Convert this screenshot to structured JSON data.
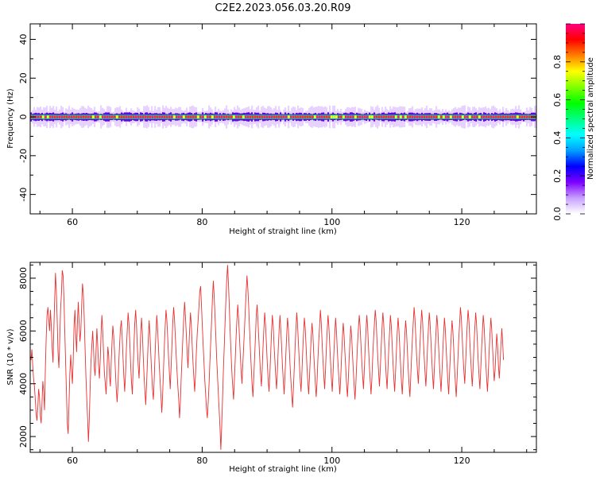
{
  "title": "C2E2.2023.056.03.20.R09",
  "chart_data": [
    {
      "type": "heatmap",
      "xlabel": "Height of straight line (km)",
      "ylabel": "Frequency (Hz)",
      "xlim": [
        53.5,
        131.5
      ],
      "ylim": [
        -50,
        48
      ],
      "xticks": [
        "60",
        "80",
        "100",
        "120"
      ],
      "yticks": [
        "40",
        "20",
        "0",
        "-20",
        "-40"
      ],
      "band_center_hz": 0,
      "band_halfwidth_hz": 1.5,
      "halo_halfwidth_hz": 4,
      "colorbar": {
        "label": "Normalized spectral amplitude",
        "range": [
          0,
          1
        ],
        "ticks": [
          "0.0",
          "0.2",
          "0.4",
          "0.6",
          "0.8"
        ],
        "colors": [
          "#ffffff",
          "#c8a0ff",
          "#7d00ff",
          "#0000ff",
          "#00a0ff",
          "#00ffff",
          "#00ff80",
          "#00ff00",
          "#80ff00",
          "#ffff00",
          "#ff8000",
          "#ff0000",
          "#ff0080"
        ]
      }
    },
    {
      "type": "line",
      "xlabel": "Height of straight line (km)",
      "ylabel": "SNR (10 * v/v)",
      "xlim": [
        53.5,
        131.5
      ],
      "ylim": [
        1400,
        8600
      ],
      "xticks": [
        "60",
        "80",
        "100",
        "120"
      ],
      "yticks": [
        "2000",
        "4000",
        "6000",
        "8000"
      ],
      "color": "#e83030",
      "x_start": 53.5,
      "x_step": 0.13,
      "y_values": [
        5100,
        4900,
        5300,
        4700,
        4200,
        3900,
        3400,
        2900,
        2600,
        3100,
        3800,
        3500,
        2800,
        2500,
        3300,
        4100,
        3700,
        3000,
        4600,
        5800,
        6600,
        6900,
        6400,
        6000,
        6800,
        6200,
        5400,
        4800,
        6000,
        7200,
        8200,
        7500,
        6400,
        5200,
        4600,
        5700,
        6800,
        7400,
        8300,
        8100,
        7200,
        6000,
        4800,
        3600,
        2500,
        2100,
        3200,
        4400,
        5100,
        4500,
        4000,
        4900,
        6200,
        6800,
        5900,
        5200,
        6400,
        7100,
        6300,
        5600,
        6000,
        7000,
        7800,
        7400,
        6600,
        5400,
        4300,
        3500,
        2700,
        1800,
        2600,
        3800,
        4800,
        5400,
        6000,
        5400,
        4600,
        4300,
        5200,
        6100,
        5500,
        4700,
        4200,
        4900,
        5900,
        6600,
        6000,
        5100,
        4400,
        4000,
        3600,
        4500,
        5400,
        5100,
        4300,
        3900,
        4800,
        5600,
        6200,
        5800,
        5200,
        4500,
        3800,
        3300,
        3900,
        4800,
        5500,
        6100,
        6400,
        5800,
        5000,
        4300,
        3700,
        4400,
        5300,
        6000,
        6700,
        6300,
        5600,
        4800,
        4100,
        3600,
        4500,
        5500,
        6300,
        6800,
        6200,
        5400,
        4700,
        4200,
        5000,
        5900,
        6500,
        5900,
        5000,
        4300,
        3700,
        3200,
        4000,
        4900,
        5700,
        6400,
        5800,
        5100,
        4400,
        3800,
        3400,
        4200,
        5100,
        5900,
        6600,
        6100,
        5400,
        4700,
        4100,
        3500,
        2900,
        3600,
        4500,
        5400,
        6200,
        6800,
        6400,
        5700,
        5000,
        4400,
        3800,
        4600,
        5500,
        6300,
        6900,
        6500,
        5800,
        5100,
        4500,
        3900,
        3400,
        2700,
        3300,
        4200,
        5000,
        5800,
        6500,
        7100,
        6600,
        5900,
        5200,
        4600,
        5300,
        6100,
        6700,
        6200,
        5500,
        4800,
        4200,
        3700,
        4400,
        5200,
        5900,
        6400,
        6900,
        7500,
        7700,
        7000,
        6200,
        5500,
        4800,
        4100,
        3600,
        3000,
        2700,
        3300,
        4000,
        4800,
        5600,
        6400,
        7200,
        7900,
        7400,
        6600,
        5800,
        5000,
        4300,
        3600,
        3000,
        2300,
        1500,
        2400,
        3500,
        4500,
        5400,
        6300,
        7200,
        8000,
        8500,
        7800,
        6900,
        6000,
        5200,
        4500,
        3900,
        3400,
        4100,
        4900,
        5700,
        6400,
        7000,
        6500,
        5800,
        5100,
        4500,
        4000,
        4700,
        5400,
        6100,
        6800,
        7500,
        8100,
        7600,
        6900,
        6100,
        5300,
        4600,
        4000,
        3500,
        4200,
        5000,
        5800,
        6600,
        7000,
        6400,
        5700,
        5000,
        4400,
        3900,
        4600,
        5400,
        6100,
        6700,
        6200,
        5500,
        4800,
        4200,
        3700,
        4300,
        5100,
        5900,
        6600,
        6200,
        5500,
        4900,
        4300,
        3800,
        4500,
        5300,
        6000,
        6600,
        6100,
        5400,
        4700,
        4100,
        3600,
        4300,
        5100,
        5800,
        6500,
        6100,
        5400,
        4700,
        4100,
        3600,
        3100,
        3800,
        4600,
        5400,
        6100,
        6700,
        6200,
        5500,
        4800,
        4200,
        3700,
        4400,
        5200,
        5900,
        6500,
        6100,
        5400,
        4700,
        4100,
        3600,
        4200,
        5000,
        5700,
        6300,
        5900,
        5200,
        4600,
        4000,
        3500,
        4100,
        4900,
        5600,
        6200,
        6800,
        6300,
        5600,
        4900,
        4300,
        3800,
        4500,
        5300,
        6000,
        6600,
        6200,
        5500,
        4800,
        4200,
        3700,
        4400,
        5200,
        5900,
        6500,
        6000,
        5300,
        4700,
        4100,
        3600,
        4200,
        5000,
        5700,
        6300,
        5900,
        5200,
        4600,
        4000,
        3500,
        4100,
        4900,
        5600,
        6200,
        5800,
        5100,
        4500,
        3900,
        3400,
        4000,
        4800,
        5500,
        6100,
        6600,
        6200,
        5500,
        4900,
        4300,
        3800,
        4500,
        5300,
        6000,
        6600,
        6100,
        5400,
        4700,
        4100,
        3600,
        4200,
        5000,
        5700,
        6300,
        6800,
        6400,
        5700,
        5000,
        4400,
        3900,
        4600,
        5400,
        6100,
        6700,
        6300,
        5600,
        4900,
        4300,
        3800,
        4500,
        5300,
        6000,
        6600,
        6200,
        5500,
        4800,
        4200,
        3700,
        4400,
        5200,
        5900,
        6500,
        6100,
        5400,
        4700,
        4100,
        3600,
        4300,
        5100,
        5800,
        6400,
        6000,
        5300,
        4600,
        4000,
        3500,
        4200,
        5000,
        5700,
        6300,
        6900,
        6500,
        5800,
        5100,
        4500,
        4000,
        4700,
        5500,
        6200,
        6800,
        6400,
        5700,
        5000,
        4400,
        3900,
        4600,
        5400,
        6100,
        6700,
        6300,
        5600,
        4900,
        4300,
        3800,
        4500,
        5300,
        6000,
        6600,
        6200,
        5500,
        4800,
        4200,
        3700,
        4400,
        5200,
        5900,
        6500,
        6100,
        5400,
        4700,
        4100,
        3600,
        4300,
        5100,
        5800,
        6400,
        6000,
        5300,
        4600,
        4000,
        3500,
        4200,
        5000,
        5700,
        6300,
        6900,
        6500,
        5800,
        5100,
        4500,
        4000,
        4700,
        5500,
        6200,
        6800,
        6400,
        5700,
        5000,
        4400,
        3900,
        4600,
        5400,
        6100,
        6700,
        6300,
        5600,
        4900,
        4300,
        3800,
        4500,
        5300,
        6000,
        6600,
        6200,
        5500,
        4800,
        4200,
        3700,
        4400,
        5200,
        5900,
        6500,
        6100,
        5400,
        4700,
        4100,
        4500,
        5200,
        5900,
        5400,
        4700,
        4200,
        4800,
        5500,
        6100,
        5600,
        4900
      ]
    }
  ]
}
